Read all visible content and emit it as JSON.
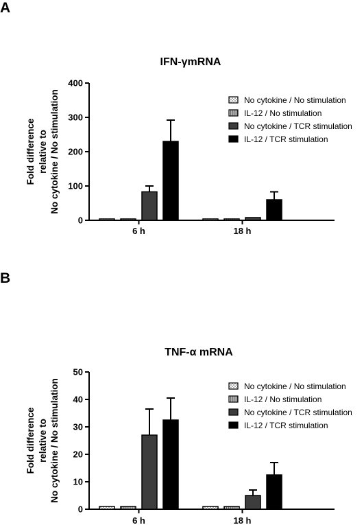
{
  "panel_a_letter": "A",
  "panel_b_letter": "B",
  "legend_labels": [
    "No cytokine / No stimulation",
    "IL-12 / No stimulation",
    "No cytokine / TCR stimulation",
    "IL-12 / TCR stimulation"
  ],
  "chart_data": [
    {
      "type": "bar",
      "title": "IFN-γmRNA",
      "ylabel_lines": [
        "Fold difference",
        "relative to",
        "No cytokine / No stimulation"
      ],
      "categories": [
        "6 h",
        "18 h"
      ],
      "ylim": [
        0,
        400
      ],
      "yticks": [
        0,
        100,
        200,
        300,
        400
      ],
      "legend_position": "right",
      "series": [
        {
          "name": "No cytokine / No stimulation",
          "values": [
            1,
            1
          ],
          "errors": [
            0,
            0
          ]
        },
        {
          "name": "IL-12 / No stimulation",
          "values": [
            1,
            1.5
          ],
          "errors": [
            0.5,
            0.5
          ]
        },
        {
          "name": "No cytokine / TCR stimulation",
          "values": [
            83,
            8
          ],
          "errors": [
            17,
            4
          ]
        },
        {
          "name": "IL-12 / TCR stimulation",
          "values": [
            230,
            60
          ],
          "errors": [
            62,
            23
          ]
        }
      ]
    },
    {
      "type": "bar",
      "title": "TNF-α mRNA",
      "ylabel_lines": [
        "Fold difference",
        "relative to",
        "No cytokine / No stimulation"
      ],
      "categories": [
        "6 h",
        "18 h"
      ],
      "ylim": [
        0,
        50
      ],
      "yticks": [
        0,
        10,
        20,
        30,
        40,
        50
      ],
      "legend_position": "right",
      "series": [
        {
          "name": "No cytokine / No stimulation",
          "values": [
            1,
            1
          ],
          "errors": [
            0,
            0
          ]
        },
        {
          "name": "IL-12 / No stimulation",
          "values": [
            1,
            1
          ],
          "errors": [
            0.2,
            0.2
          ]
        },
        {
          "name": "No cytokine / TCR stimulation",
          "values": [
            27,
            5
          ],
          "errors": [
            9.5,
            2
          ]
        },
        {
          "name": "IL-12 / TCR stimulation",
          "values": [
            32.5,
            12.5
          ],
          "errors": [
            8,
            4.5
          ]
        }
      ]
    }
  ],
  "colors": {
    "series_fill": [
      "#ffffff",
      "#9a9a9a",
      "#3d3d3d",
      "#000000"
    ],
    "axis": "#000000"
  }
}
